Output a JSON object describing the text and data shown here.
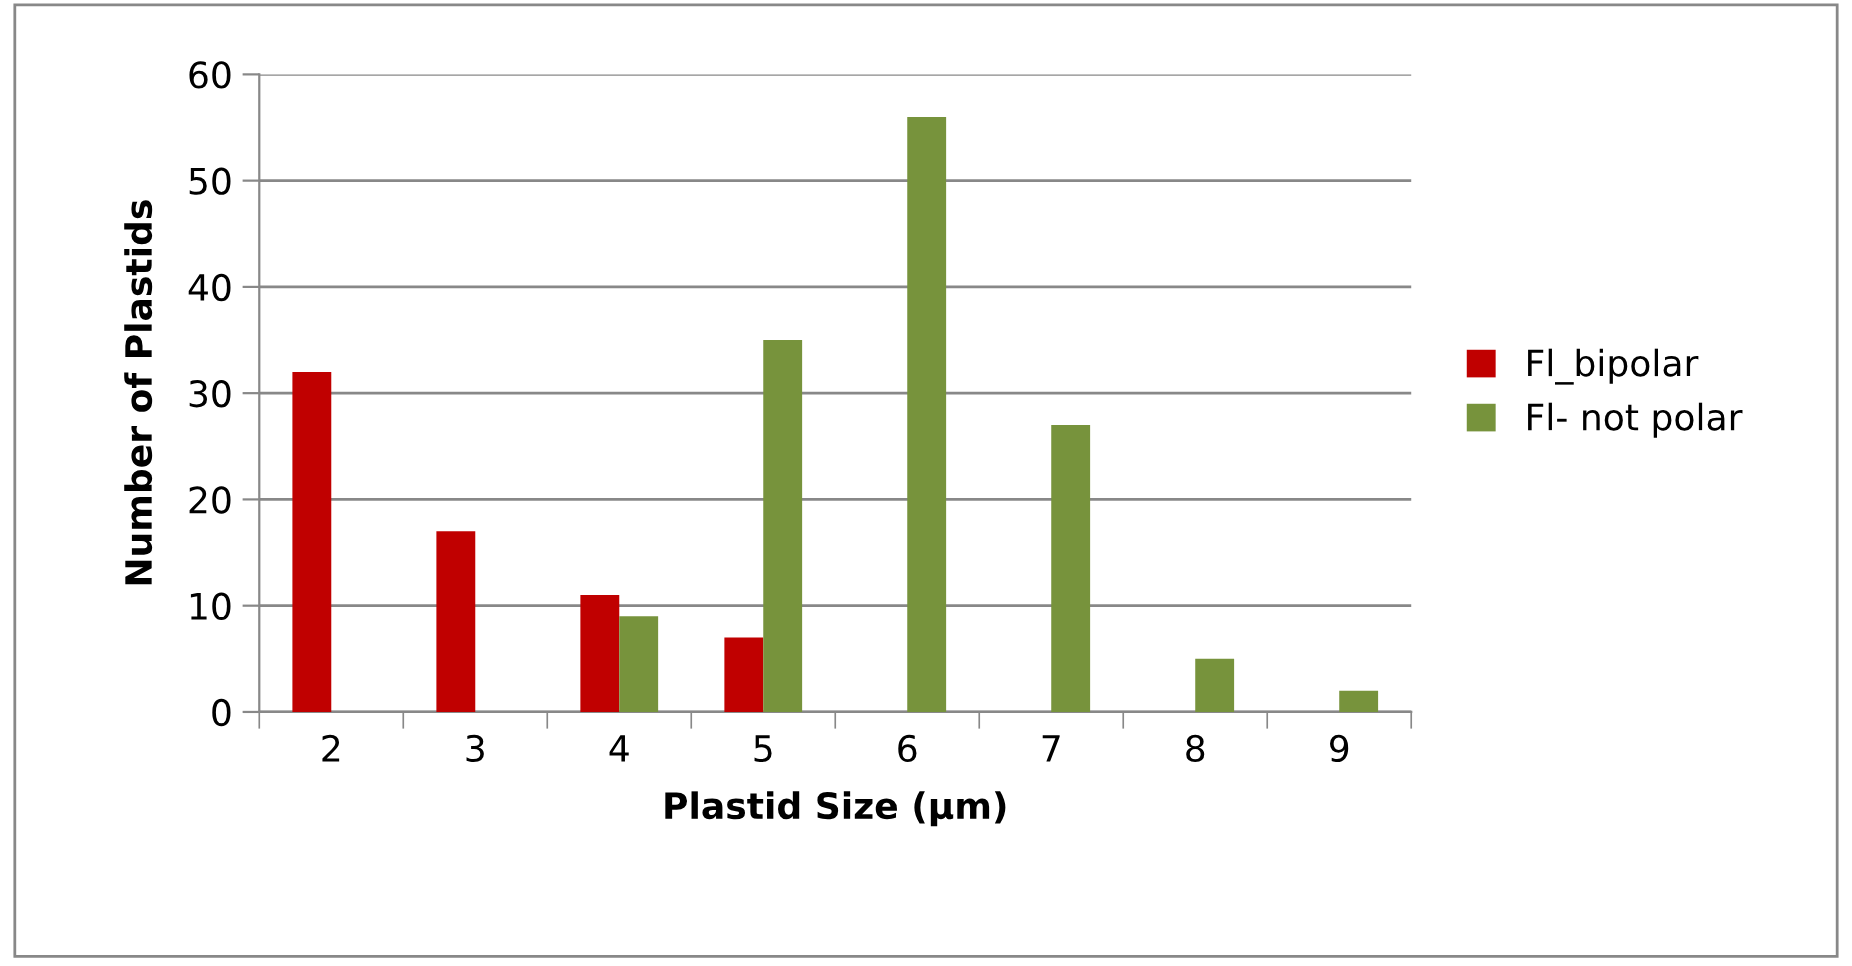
{
  "chart_data": {
    "type": "bar",
    "xlabel": "Plastid Size (μm)",
    "ylabel": "Number of Plastids",
    "categories": [
      "2",
      "3",
      "4",
      "5",
      "6",
      "7",
      "8",
      "9"
    ],
    "series": [
      {
        "name": "Fl_bipolar",
        "color": "#c00000",
        "values": [
          32,
          17,
          11,
          7,
          null,
          null,
          null,
          null
        ]
      },
      {
        "name": "Fl- not polar",
        "color": "#77933c",
        "values": [
          null,
          null,
          9,
          35,
          56,
          27,
          5,
          2
        ]
      }
    ],
    "ylim": [
      0,
      60
    ],
    "yticks": [
      0,
      10,
      20,
      30,
      40,
      50,
      60
    ],
    "grid": "y",
    "legend": "right"
  }
}
